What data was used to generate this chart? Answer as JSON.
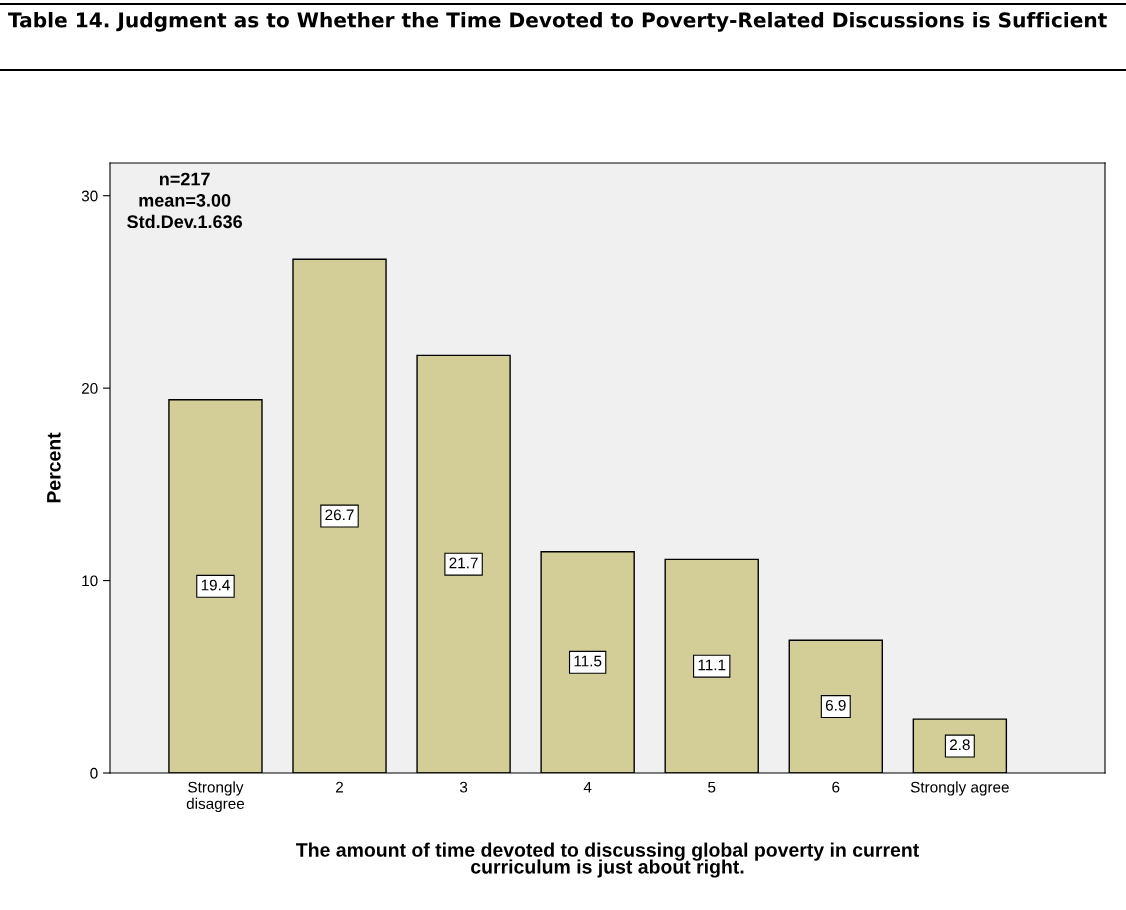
{
  "chart_data": {
    "type": "bar",
    "title": "Table 14. Judgment as to Whether the Time Devoted to Poverty-Related Discussions is Sufficient",
    "xlabel": "The amount of time devoted to discussing global poverty in current\ncurriculum is just about right.",
    "ylabel": "Percent",
    "categories": [
      "Strongly\ndisagree",
      "2",
      "3",
      "4",
      "5",
      "6",
      "Strongly agree"
    ],
    "values": [
      19.4,
      26.7,
      21.7,
      11.5,
      11.1,
      6.9,
      2.8
    ],
    "color": "#d3ce97",
    "ylim": [
      0,
      31.7
    ],
    "yticks": [
      0,
      10,
      20,
      30
    ],
    "data_labels": true,
    "grid": false,
    "legend": false,
    "annotations": [
      "n=217",
      "mean=3.00",
      "Std.Dev.1.636"
    ]
  }
}
